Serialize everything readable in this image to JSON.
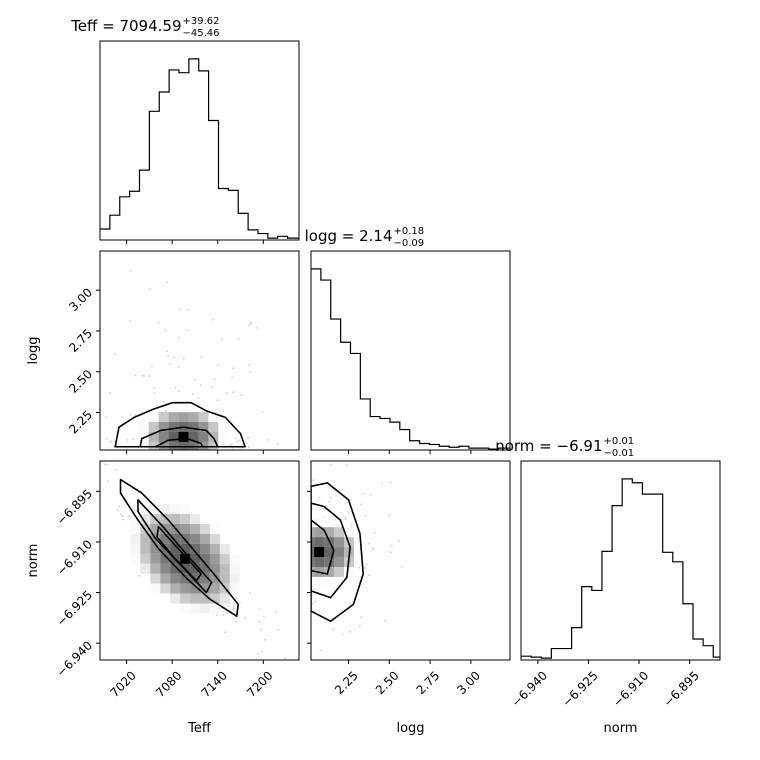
{
  "chart_data": {
    "type": "corner",
    "parameters": [
      "Teff",
      "logg",
      "norm"
    ],
    "titles": [
      {
        "param": "Teff",
        "label": "Teff = 7094.59",
        "plus": "+39.62",
        "minus": "−45.46"
      },
      {
        "param": "logg",
        "label": "logg = 2.14",
        "plus": "+0.18",
        "minus": "−0.09"
      },
      {
        "param": "norm",
        "label": "norm = −6.91",
        "plus": "+0.01",
        "minus": "−0.01"
      }
    ],
    "ranges": {
      "Teff": [
        6985,
        7247
      ],
      "logg": [
        2.02,
        3.24
      ],
      "norm": [
        -6.945,
        -6.886
      ]
    },
    "ticks": {
      "Teff": {
        "values": [
          7020,
          7080,
          7140,
          7200
        ],
        "labels": [
          "7020",
          "7080",
          "7140",
          "7200"
        ]
      },
      "logg": {
        "values": [
          2.25,
          2.5,
          2.75,
          3.0
        ],
        "labels": [
          "2.25",
          "2.50",
          "2.75",
          "3.00"
        ]
      },
      "norm": {
        "values": [
          -6.94,
          -6.925,
          -6.91,
          -6.895
        ],
        "labels": [
          "−6.940",
          "−6.925",
          "−6.910",
          "−6.895"
        ]
      }
    },
    "histograms": {
      "Teff": {
        "edges": [
          6985,
          6998,
          7011,
          7024,
          7037,
          7050,
          7063,
          7076,
          7089,
          7102,
          7115,
          7128,
          7141,
          7154,
          7167,
          7180,
          7193,
          7206,
          7219,
          7232,
          7247
        ],
        "counts": [
          12,
          27,
          47,
          53,
          76,
          140,
          161,
          185,
          182,
          197,
          184,
          130,
          56,
          54,
          29,
          11,
          7,
          2,
          4,
          2
        ]
      },
      "logg": {
        "edges": [
          2.02,
          2.0805,
          2.141,
          2.2015,
          2.262,
          2.3225,
          2.383,
          2.4435,
          2.504,
          2.5645,
          2.625,
          2.6855,
          2.746,
          2.8065,
          2.867,
          2.9275,
          2.988,
          3.0485,
          3.109,
          3.1695,
          3.24
        ],
        "counts": [
          195,
          183,
          141,
          116,
          104,
          55,
          36,
          34,
          30,
          22,
          10,
          7,
          6,
          4,
          3,
          4,
          2,
          2,
          1,
          2
        ]
      },
      "norm": {
        "edges": [
          -6.945,
          -6.942,
          -6.939,
          -6.936,
          -6.933,
          -6.93,
          -6.927,
          -6.924,
          -6.921,
          -6.918,
          -6.915,
          -6.912,
          -6.909,
          -6.906,
          -6.903,
          -6.9,
          -6.897,
          -6.894,
          -6.891,
          -6.888,
          -6.886
        ],
        "counts": [
          4,
          3,
          2,
          12,
          12,
          34,
          77,
          73,
          114,
          162,
          190,
          186,
          174,
          174,
          113,
          103,
          59,
          22,
          15,
          3
        ]
      }
    },
    "density_2d": [
      {
        "x": "Teff",
        "y": "logg",
        "peak": [
          7095,
          2.1
        ],
        "contours": [
          [
            [
              7005,
              2.04
            ],
            [
              7010,
              2.16
            ],
            [
              7030,
              2.22
            ],
            [
              7055,
              2.27
            ],
            [
              7080,
              2.31
            ],
            [
              7105,
              2.31
            ],
            [
              7125,
              2.26
            ],
            [
              7150,
              2.22
            ],
            [
              7170,
              2.12
            ],
            [
              7176,
              2.04
            ]
          ],
          [
            [
              7038,
              2.04
            ],
            [
              7040,
              2.09
            ],
            [
              7065,
              2.14
            ],
            [
              7095,
              2.16
            ],
            [
              7125,
              2.14
            ],
            [
              7135,
              2.09
            ],
            [
              7140,
              2.04
            ]
          ],
          [
            [
              7058,
              2.04
            ],
            [
              7075,
              2.08
            ],
            [
              7100,
              2.09
            ],
            [
              7118,
              2.06
            ],
            [
              7120,
              2.04
            ]
          ]
        ]
      },
      {
        "x": "Teff",
        "y": "norm",
        "peak": [
          7097,
          -6.915
        ],
        "contours": [
          [
            [
              7012,
              -6.8915
            ],
            [
              7040,
              -6.8955
            ],
            [
              7075,
              -6.9035
            ],
            [
              7105,
              -6.9115
            ],
            [
              7135,
              -6.9195
            ],
            [
              7167,
              -6.9285
            ],
            [
              7165,
              -6.932
            ],
            [
              7130,
              -6.927
            ],
            [
              7100,
              -6.921
            ],
            [
              7062,
              -6.912
            ],
            [
              7035,
              -6.9035
            ],
            [
              7012,
              -6.8955
            ]
          ],
          [
            [
              7035,
              -6.8975
            ],
            [
              7070,
              -6.906
            ],
            [
              7102,
              -6.9145
            ],
            [
              7132,
              -6.922
            ],
            [
              7125,
              -6.925
            ],
            [
              7092,
              -6.917
            ],
            [
              7058,
              -6.909
            ],
            [
              7035,
              -6.901
            ]
          ],
          [
            [
              7062,
              -6.9055
            ],
            [
              7090,
              -6.9125
            ],
            [
              7118,
              -6.9195
            ],
            [
              7112,
              -6.9215
            ],
            [
              7082,
              -6.9145
            ],
            [
              7060,
              -6.9085
            ]
          ]
        ]
      },
      {
        "x": "logg",
        "y": "norm",
        "peak": [
          2.07,
          -6.913
        ],
        "contours": [
          [
            [
              2.02,
              -6.8935
            ],
            [
              2.12,
              -6.8925
            ],
            [
              2.25,
              -6.8975
            ],
            [
              2.32,
              -6.9075
            ],
            [
              2.34,
              -6.9195
            ],
            [
              2.28,
              -6.9285
            ],
            [
              2.14,
              -6.9335
            ],
            [
              2.02,
              -6.9305
            ]
          ],
          [
            [
              2.02,
              -6.8985
            ],
            [
              2.1,
              -6.8995
            ],
            [
              2.2,
              -6.9035
            ],
            [
              2.26,
              -6.9115
            ],
            [
              2.24,
              -6.9205
            ],
            [
              2.14,
              -6.9265
            ],
            [
              2.02,
              -6.9245
            ]
          ],
          [
            [
              2.02,
              -6.9035
            ],
            [
              2.1,
              -6.9065
            ],
            [
              2.16,
              -6.9125
            ],
            [
              2.12,
              -6.9195
            ],
            [
              2.02,
              -6.9185
            ]
          ]
        ]
      }
    ]
  }
}
